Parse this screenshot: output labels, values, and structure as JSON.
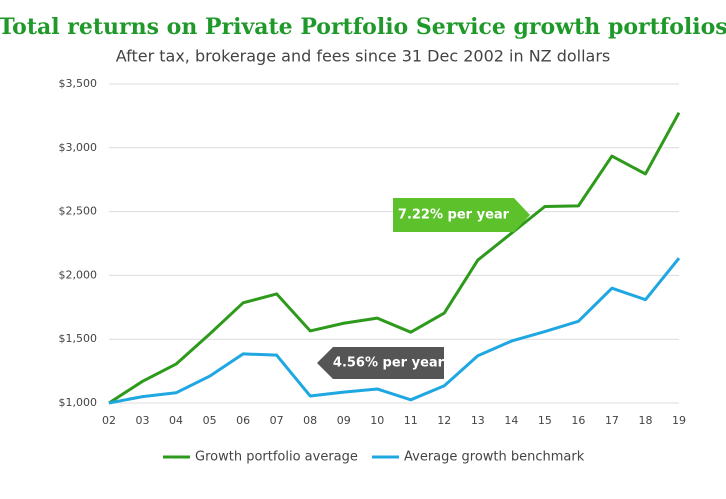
{
  "chart_data": {
    "type": "line",
    "title": "Total returns on Private Portfolio Service growth portfolios",
    "subtitle": "After tax, brokerage and fees since 31 Dec 2002 in NZ dollars",
    "categories": [
      "02",
      "03",
      "04",
      "05",
      "06",
      "07",
      "08",
      "09",
      "10",
      "11",
      "12",
      "13",
      "14",
      "15",
      "16",
      "17",
      "18",
      "19"
    ],
    "series": [
      {
        "name": "Growth portfolio average",
        "color": "#2e9a1c",
        "values": [
          1000,
          1170,
          1305,
          1540,
          1785,
          1855,
          1565,
          1625,
          1665,
          1555,
          1705,
          2120,
          2330,
          2540,
          2545,
          2935,
          2795,
          3275
        ]
      },
      {
        "name": "Average growth benchmark",
        "color": "#1ea7e1",
        "values": [
          1000,
          1050,
          1080,
          1210,
          1385,
          1375,
          1055,
          1085,
          1110,
          1025,
          1135,
          1370,
          1485,
          1560,
          1640,
          1900,
          1810,
          2135
        ]
      }
    ],
    "ylim": [
      1000,
      3500
    ],
    "yticks": [
      {
        "value": 1000,
        "label": "$1,000"
      },
      {
        "value": 1500,
        "label": "$1,500"
      },
      {
        "value": 2000,
        "label": "$2,000"
      },
      {
        "value": 2500,
        "label": "$2,500"
      },
      {
        "value": 3000,
        "label": "$3,000"
      },
      {
        "value": 3500,
        "label": "$3,500"
      }
    ],
    "grid": true,
    "legend": "bottom",
    "annotations": [
      {
        "text": "7.22% per year",
        "color": "#5cc12a"
      },
      {
        "text": "4.56% per year",
        "color": "#555555"
      }
    ]
  }
}
